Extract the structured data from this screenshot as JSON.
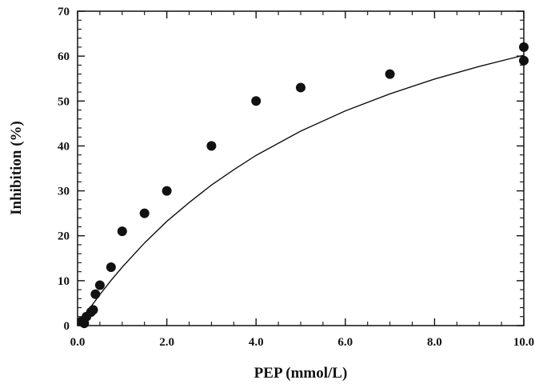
{
  "chart_data": {
    "type": "scatter",
    "xlabel": "PEP (mmol/L)",
    "ylabel": "Inhibition (%)",
    "xlim": [
      0,
      10
    ],
    "ylim": [
      0,
      70
    ],
    "x_ticks": [
      0,
      2,
      4,
      6,
      8,
      10
    ],
    "x_tick_labels": [
      "0.0",
      "2.0",
      "4.0",
      "6.0",
      "8.0",
      "10.0"
    ],
    "y_ticks": [
      0,
      10,
      20,
      30,
      40,
      50,
      60,
      70
    ],
    "y_tick_labels": [
      "0",
      "10",
      "20",
      "30",
      "40",
      "50",
      "60",
      "70"
    ],
    "grid": false,
    "legend": "none",
    "marker_color": "#111111",
    "series": [
      {
        "points": [
          {
            "x": 0.1,
            "y": 1
          },
          {
            "x": 0.15,
            "y": 0.5
          },
          {
            "x": 0.2,
            "y": 2
          },
          {
            "x": 0.3,
            "y": 3
          },
          {
            "x": 0.35,
            "y": 3.5
          },
          {
            "x": 0.4,
            "y": 7
          },
          {
            "x": 0.5,
            "y": 9
          },
          {
            "x": 0.75,
            "y": 13
          },
          {
            "x": 1.0,
            "y": 21
          },
          {
            "x": 1.5,
            "y": 25
          },
          {
            "x": 2.0,
            "y": 30
          },
          {
            "x": 3.0,
            "y": 40
          },
          {
            "x": 4.0,
            "y": 50
          },
          {
            "x": 5.0,
            "y": 53
          },
          {
            "x": 7.0,
            "y": 56
          },
          {
            "x": 10.0,
            "y": 62
          },
          {
            "x": 10.0,
            "y": 59
          }
        ]
      }
    ],
    "fit_curve": {
      "x": [
        0,
        0.25,
        0.5,
        0.75,
        1,
        1.5,
        2,
        2.5,
        3,
        3.5,
        4,
        5,
        6,
        7,
        8,
        9,
        10
      ],
      "y": [
        0,
        3.56,
        6.91,
        10.04,
        13.0,
        18.4,
        23.2,
        27.4,
        31.3,
        34.7,
        37.9,
        43.3,
        47.8,
        51.6,
        54.9,
        57.7,
        60.2
      ]
    }
  }
}
